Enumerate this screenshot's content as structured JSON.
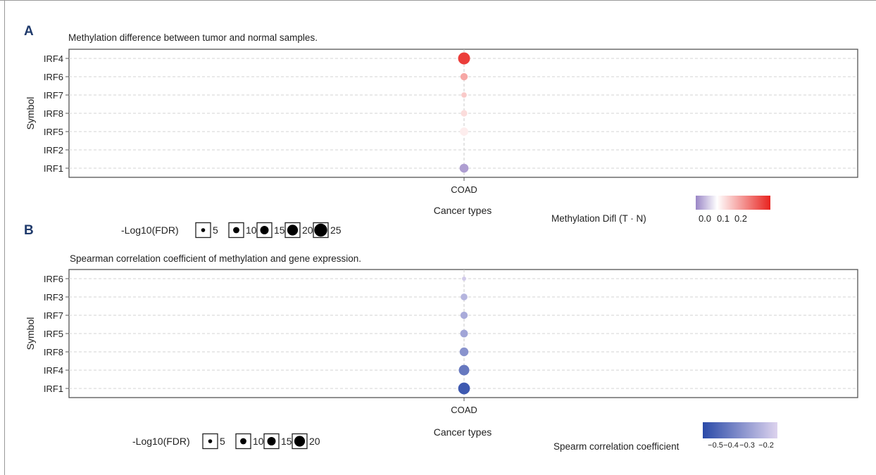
{
  "chart_data": [
    {
      "panel_label": "A",
      "type": "scatter",
      "title": "Methylation difference between tumor and normal samples.",
      "xlabel": "Cancer types",
      "ylabel": "Symbol",
      "categories_x": [
        "COAD"
      ],
      "categories_y": [
        "IRF4",
        "IRF6",
        "IRF7",
        "IRF8",
        "IRF5",
        "IRF2",
        "IRF1"
      ],
      "points": [
        {
          "x": "COAD",
          "y": "IRF4",
          "value": 0.22,
          "fdr": 25
        },
        {
          "x": "COAD",
          "y": "IRF6",
          "value": 0.1,
          "fdr": 6
        },
        {
          "x": "COAD",
          "y": "IRF7",
          "value": 0.06,
          "fdr": 2
        },
        {
          "x": "COAD",
          "y": "IRF8",
          "value": 0.04,
          "fdr": 4
        },
        {
          "x": "COAD",
          "y": "IRF5",
          "value": 0.02,
          "fdr": 9
        },
        {
          "x": "COAD",
          "y": "IRF1",
          "value": -0.08,
          "fdr": 11
        }
      ],
      "color_legend": {
        "title": "Methylation Difl (T · N)",
        "tick_labels": [
          "0.0",
          "0.1",
          "0.2"
        ],
        "range": [
          -0.1,
          0.25
        ],
        "low_color": "#9a86c6",
        "mid_color": "#ffffff",
        "high_color": "#e8231f"
      },
      "size_legend": {
        "title": "-Log10(FDR)",
        "entries": [
          {
            "label": "5",
            "value": 5
          },
          {
            "label": "10",
            "value": 10
          },
          {
            "label": "15",
            "value": 15
          },
          {
            "label": "20",
            "value": 20
          },
          {
            "label": "25",
            "value": 25
          }
        ]
      },
      "grid": true
    },
    {
      "panel_label": "B",
      "type": "scatter",
      "title": "Spearman correlation coefficient of methylation and gene expression.",
      "xlabel": "Cancer types",
      "ylabel": "Symbol",
      "categories_x": [
        "COAD"
      ],
      "categories_y": [
        "IRF6",
        "IRF3",
        "IRF7",
        "IRF5",
        "IRF8",
        "IRF4",
        "IRF1"
      ],
      "points": [
        {
          "x": "COAD",
          "y": "IRF6",
          "value": -0.18,
          "fdr": 1
        },
        {
          "x": "COAD",
          "y": "IRF3",
          "value": -0.25,
          "fdr": 5
        },
        {
          "x": "COAD",
          "y": "IRF7",
          "value": -0.28,
          "fdr": 6
        },
        {
          "x": "COAD",
          "y": "IRF5",
          "value": -0.3,
          "fdr": 7
        },
        {
          "x": "COAD",
          "y": "IRF8",
          "value": -0.36,
          "fdr": 10
        },
        {
          "x": "COAD",
          "y": "IRF4",
          "value": -0.45,
          "fdr": 16
        },
        {
          "x": "COAD",
          "y": "IRF1",
          "value": -0.55,
          "fdr": 21
        }
      ],
      "color_legend": {
        "title": "Spearm correlation coefficient",
        "tick_labels": [
          "−0.5",
          "−0.4",
          "−0.3",
          "−0.2"
        ],
        "range": [
          -0.6,
          -0.15
        ],
        "low_color": "#2a4aa8",
        "high_color": "#ddd3ee"
      },
      "size_legend": {
        "title": "-Log10(FDR)",
        "entries": [
          {
            "label": "5",
            "value": 5
          },
          {
            "label": "10",
            "value": 10
          },
          {
            "label": "15",
            "value": 15
          },
          {
            "label": "20",
            "value": 20
          }
        ]
      },
      "grid": true
    }
  ]
}
